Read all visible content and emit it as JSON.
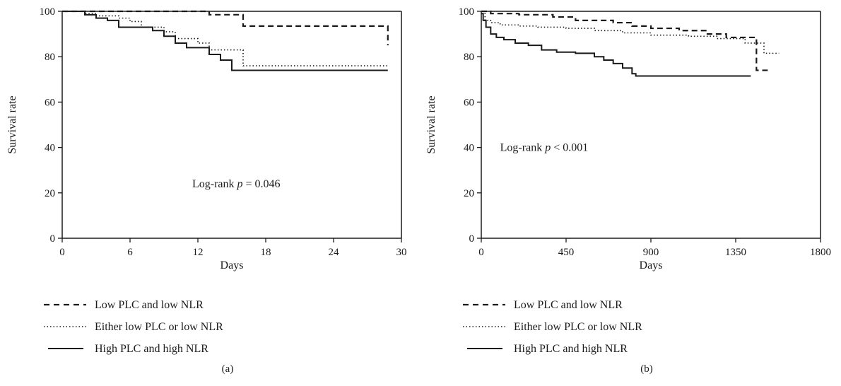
{
  "chart_data": [
    {
      "type": "line",
      "panel_label": "(a)",
      "xlabel": "Days",
      "ylabel": "Survival rate",
      "xlim": [
        0,
        30
      ],
      "ylim": [
        0,
        100
      ],
      "xticks": [
        "0",
        "6",
        "12",
        "18",
        "24",
        "30"
      ],
      "yticks": [
        "0",
        "20",
        "40",
        "60",
        "80",
        "100"
      ],
      "annotation": {
        "prefix": "Log-rank ",
        "italic": "p",
        "suffix": " = 0.046",
        "x": 11.5,
        "y": 24
      },
      "series": [
        {
          "name": "Low PLC and low NLR",
          "style": "dashed",
          "steps": [
            [
              0,
              100
            ],
            [
              2,
              100
            ],
            [
              13,
              98.5
            ],
            [
              16,
              93.5
            ],
            [
              28.8,
              85
            ]
          ]
        },
        {
          "name": "Either low PLC or low NLR",
          "style": "dotted",
          "steps": [
            [
              0,
              100
            ],
            [
              2,
              99
            ],
            [
              3,
              98
            ],
            [
              5,
              97
            ],
            [
              6,
              95.5
            ],
            [
              7,
              93
            ],
            [
              9,
              91
            ],
            [
              10,
              88
            ],
            [
              12,
              86
            ],
            [
              13,
              83
            ],
            [
              16,
              76
            ],
            [
              28.8,
              76
            ]
          ]
        },
        {
          "name": "High PLC and high NLR",
          "style": "solid",
          "steps": [
            [
              0,
              100
            ],
            [
              2,
              98.5
            ],
            [
              3,
              97
            ],
            [
              4,
              96
            ],
            [
              5,
              93
            ],
            [
              8,
              91.5
            ],
            [
              9,
              89
            ],
            [
              10,
              86
            ],
            [
              11,
              84
            ],
            [
              13,
              81
            ],
            [
              14,
              78.5
            ],
            [
              15,
              74
            ],
            [
              28.8,
              74
            ]
          ]
        }
      ]
    },
    {
      "type": "line",
      "panel_label": "(b)",
      "xlabel": "Days",
      "ylabel": "Survival rate",
      "xlim": [
        0,
        1800
      ],
      "ylim": [
        0,
        100
      ],
      "xticks": [
        "0",
        "450",
        "900",
        "1350",
        "1800"
      ],
      "yticks": [
        "0",
        "20",
        "40",
        "60",
        "80",
        "100"
      ],
      "annotation": {
        "prefix": "Log-rank ",
        "italic": "p",
        "suffix": " < 0.001",
        "x": 100,
        "y": 40
      },
      "series": [
        {
          "name": "Low PLC and low NLR",
          "style": "dashed",
          "steps": [
            [
              0,
              100
            ],
            [
              50,
              99
            ],
            [
              200,
              98.5
            ],
            [
              380,
              97.5
            ],
            [
              500,
              96
            ],
            [
              700,
              95
            ],
            [
              800,
              93.5
            ],
            [
              900,
              92.5
            ],
            [
              1050,
              91.5
            ],
            [
              1200,
              90
            ],
            [
              1300,
              88.5
            ],
            [
              1460,
              74
            ],
            [
              1520,
              74
            ]
          ]
        },
        {
          "name": "Either low PLC or low NLR",
          "style": "dotted",
          "steps": [
            [
              0,
              99
            ],
            [
              20,
              96
            ],
            [
              50,
              95
            ],
            [
              100,
              94
            ],
            [
              200,
              93.5
            ],
            [
              300,
              93
            ],
            [
              450,
              92.5
            ],
            [
              600,
              91.5
            ],
            [
              750,
              90.5
            ],
            [
              900,
              89.5
            ],
            [
              1100,
              89
            ],
            [
              1250,
              88
            ],
            [
              1400,
              86
            ],
            [
              1500,
              81.5
            ],
            [
              1580,
              81.5
            ]
          ]
        },
        {
          "name": "High PLC and high NLR",
          "style": "solid",
          "steps": [
            [
              0,
              99
            ],
            [
              10,
              96
            ],
            [
              25,
              93
            ],
            [
              50,
              90
            ],
            [
              80,
              88.5
            ],
            [
              120,
              87.5
            ],
            [
              180,
              86
            ],
            [
              250,
              85
            ],
            [
              320,
              83
            ],
            [
              400,
              82
            ],
            [
              500,
              81.5
            ],
            [
              600,
              80
            ],
            [
              650,
              78.5
            ],
            [
              700,
              77
            ],
            [
              750,
              75
            ],
            [
              800,
              72.5
            ],
            [
              820,
              71.5
            ],
            [
              1430,
              71.5
            ]
          ]
        }
      ]
    }
  ],
  "legend": [
    {
      "label": "Low PLC and low NLR",
      "style": "dashed"
    },
    {
      "label": "Either low PLC or low NLR",
      "style": "dotted"
    },
    {
      "label": "High PLC and high NLR",
      "style": "solid"
    }
  ]
}
